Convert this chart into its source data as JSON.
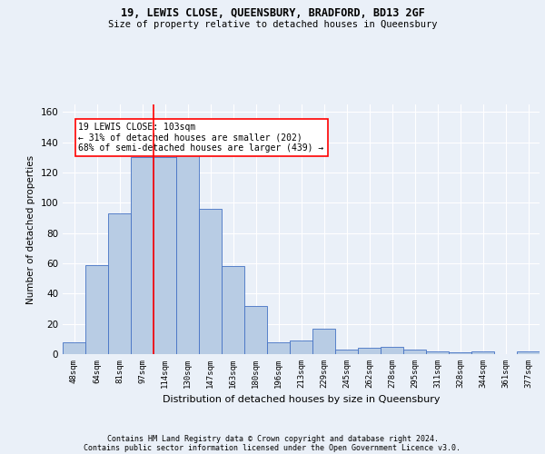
{
  "title1": "19, LEWIS CLOSE, QUEENSBURY, BRADFORD, BD13 2GF",
  "title2": "Size of property relative to detached houses in Queensbury",
  "xlabel": "Distribution of detached houses by size in Queensbury",
  "ylabel": "Number of detached properties",
  "categories": [
    "48sqm",
    "64sqm",
    "81sqm",
    "97sqm",
    "114sqm",
    "130sqm",
    "147sqm",
    "163sqm",
    "180sqm",
    "196sqm",
    "213sqm",
    "229sqm",
    "245sqm",
    "262sqm",
    "278sqm",
    "295sqm",
    "311sqm",
    "328sqm",
    "344sqm",
    "361sqm",
    "377sqm"
  ],
  "values": [
    8,
    59,
    93,
    130,
    130,
    132,
    96,
    58,
    32,
    8,
    9,
    17,
    3,
    4,
    5,
    3,
    2,
    1,
    2,
    0,
    2
  ],
  "bar_color": "#b8cce4",
  "bar_edge_color": "#4472c4",
  "vline_x_pos": 3.5,
  "vline_color": "red",
  "annotation_text": "19 LEWIS CLOSE: 103sqm\n← 31% of detached houses are smaller (202)\n68% of semi-detached houses are larger (439) →",
  "annotation_box_color": "white",
  "annotation_box_edge": "red",
  "ylim": [
    0,
    165
  ],
  "yticks": [
    0,
    20,
    40,
    60,
    80,
    100,
    120,
    140,
    160
  ],
  "footer1": "Contains HM Land Registry data © Crown copyright and database right 2024.",
  "footer2": "Contains public sector information licensed under the Open Government Licence v3.0.",
  "bg_color": "#eaf0f8",
  "plot_bg_color": "#eaf0f8"
}
